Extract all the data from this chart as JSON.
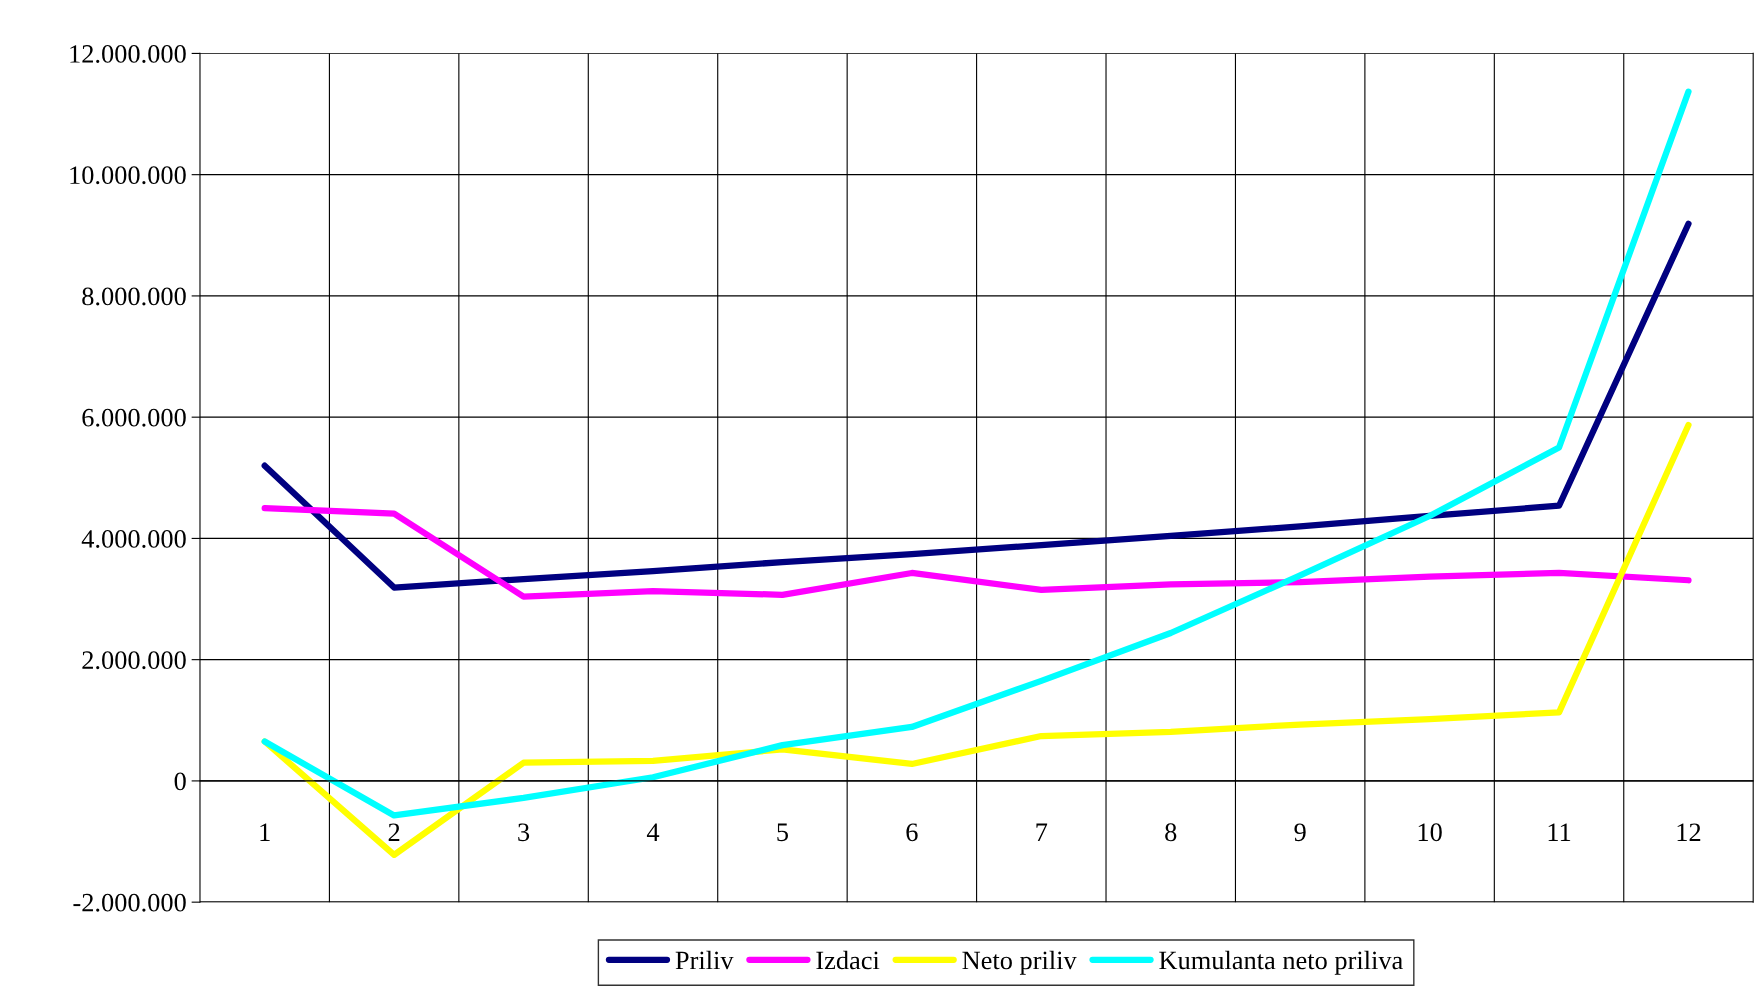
{
  "chart_data": {
    "type": "line",
    "categories": [
      "1",
      "2",
      "3",
      "4",
      "5",
      "6",
      "7",
      "8",
      "9",
      "10",
      "11",
      "12"
    ],
    "series": [
      {
        "name": "Priliv",
        "color": "#000080",
        "values": [
          5200000,
          3190000,
          3330000,
          3460000,
          3610000,
          3740000,
          3890000,
          4040000,
          4200000,
          4370000,
          4540000,
          9190000
        ]
      },
      {
        "name": "Izdaci",
        "color": "#ff00ff",
        "values": [
          4500000,
          4410000,
          3040000,
          3130000,
          3070000,
          3430000,
          3150000,
          3240000,
          3280000,
          3370000,
          3430000,
          3310000
        ]
      },
      {
        "name": "Neto priliv",
        "color": "#ffff00",
        "values": [
          650000,
          -1220000,
          300000,
          330000,
          520000,
          280000,
          740000,
          810000,
          930000,
          1020000,
          1130000,
          5870000
        ]
      },
      {
        "name": "Kumulanta neto priliva",
        "color": "#00ffff",
        "values": [
          650000,
          -570000,
          -280000,
          60000,
          590000,
          890000,
          1650000,
          2440000,
          3390000,
          4370000,
          5500000,
          11370000
        ]
      }
    ],
    "ylim": [
      -2000000,
      12000000
    ],
    "yticks": [
      {
        "value": -2000000,
        "label": "-2.000.000"
      },
      0,
      {
        "value": 2000000,
        "label": "2.000.000"
      },
      {
        "value": 4000000,
        "label": "4.000.000"
      },
      {
        "value": 6000000,
        "label": "6.000.000"
      },
      {
        "value": 8000000,
        "label": "8.000.000"
      },
      {
        "value": 10000000,
        "label": "10.000.000"
      },
      {
        "value": 12000000,
        "label": "12.000.000"
      }
    ],
    "grid": true,
    "legend": "bottom",
    "marker": "none",
    "line_style": "solid"
  }
}
